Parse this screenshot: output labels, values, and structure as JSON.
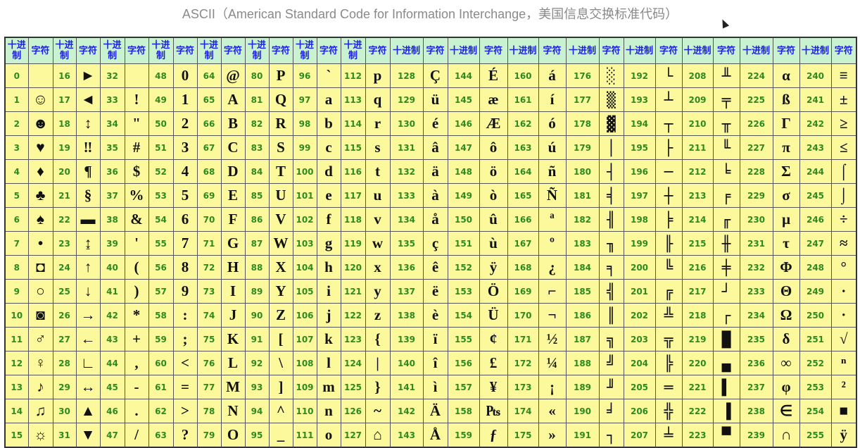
{
  "title": "ASCII（American Standard Code for Information Interchange，美国信息交换标准代码）",
  "header": {
    "decimal": "十进制",
    "decimal_wrapped": "十进 制",
    "char": "字符"
  },
  "colors": {
    "header_bg": "#c8f2d0",
    "header_text": "#1b22e0",
    "cell_bg": "#fbf99c",
    "decimal_text": "#2d8a1f"
  },
  "columns": [
    {
      "decimals": [
        "0",
        "1",
        "2",
        "3",
        "4",
        "5",
        "6",
        "7",
        "8",
        "9",
        "10",
        "11",
        "12",
        "13",
        "14",
        "15"
      ],
      "chars": [
        "",
        "☺",
        "☻",
        "♥",
        "♦",
        "♣",
        "♠",
        "•",
        "◘",
        "○",
        "◙",
        "♂",
        "♀",
        "♪",
        "♫",
        "☼"
      ]
    },
    {
      "decimals": [
        "16",
        "17",
        "18",
        "19",
        "20",
        "21",
        "22",
        "23",
        "24",
        "25",
        "26",
        "27",
        "28",
        "29",
        "30",
        "31"
      ],
      "chars": [
        "►",
        "◄",
        "↕",
        "‼",
        "¶",
        "§",
        "▬",
        "↨",
        "↑",
        "↓",
        "→",
        "←",
        "∟",
        "↔",
        "▲",
        "▼"
      ]
    },
    {
      "decimals": [
        "32",
        "33",
        "34",
        "35",
        "36",
        "37",
        "38",
        "39",
        "40",
        "41",
        "42",
        "43",
        "44",
        "45",
        "46",
        "47"
      ],
      "chars": [
        "",
        "!",
        "\"",
        "#",
        "$",
        "%",
        "&",
        "'",
        "(",
        ")",
        "*",
        "+",
        ",",
        "-",
        ".",
        "/"
      ]
    },
    {
      "decimals": [
        "48",
        "49",
        "50",
        "51",
        "52",
        "53",
        "54",
        "55",
        "56",
        "57",
        "58",
        "59",
        "60",
        "61",
        "62",
        "63"
      ],
      "chars": [
        "0",
        "1",
        "2",
        "3",
        "4",
        "5",
        "6",
        "7",
        "8",
        "9",
        ":",
        ";",
        "<",
        "=",
        ">",
        "?"
      ]
    },
    {
      "decimals": [
        "64",
        "65",
        "66",
        "67",
        "68",
        "69",
        "70",
        "71",
        "72",
        "73",
        "74",
        "75",
        "76",
        "77",
        "78",
        "79"
      ],
      "chars": [
        "@",
        "A",
        "B",
        "C",
        "D",
        "E",
        "F",
        "G",
        "H",
        "I",
        "J",
        "K",
        "L",
        "M",
        "N",
        "O"
      ]
    },
    {
      "decimals": [
        "80",
        "81",
        "82",
        "83",
        "84",
        "85",
        "86",
        "87",
        "88",
        "89",
        "90",
        "91",
        "92",
        "93",
        "94",
        "95"
      ],
      "chars": [
        "P",
        "Q",
        "R",
        "S",
        "T",
        "U",
        "V",
        "W",
        "X",
        "Y",
        "Z",
        "[",
        "\\",
        "]",
        "^",
        "_"
      ]
    },
    {
      "decimals": [
        "96",
        "97",
        "98",
        "99",
        "100",
        "101",
        "102",
        "103",
        "104",
        "105",
        "106",
        "107",
        "108",
        "109",
        "110",
        "111"
      ],
      "chars": [
        "`",
        "a",
        "b",
        "c",
        "d",
        "e",
        "f",
        "g",
        "h",
        "i",
        "j",
        "k",
        "l",
        "m",
        "n",
        "o"
      ]
    },
    {
      "decimals": [
        "112",
        "113",
        "114",
        "115",
        "116",
        "117",
        "118",
        "119",
        "120",
        "121",
        "122",
        "123",
        "124",
        "125",
        "126",
        "127"
      ],
      "chars": [
        "p",
        "q",
        "r",
        "s",
        "t",
        "u",
        "v",
        "w",
        "x",
        "y",
        "z",
        "{",
        "|",
        "}",
        "~",
        "⌂"
      ]
    },
    {
      "decimals": [
        "128",
        "129",
        "130",
        "131",
        "132",
        "133",
        "134",
        "135",
        "136",
        "137",
        "138",
        "139",
        "140",
        "141",
        "142",
        "143"
      ],
      "chars": [
        "Ç",
        "ü",
        "é",
        "â",
        "ä",
        "à",
        "å",
        "ç",
        "ê",
        "ë",
        "è",
        "ï",
        "î",
        "ì",
        "Ä",
        "Å"
      ]
    },
    {
      "decimals": [
        "144",
        "145",
        "146",
        "147",
        "148",
        "149",
        "150",
        "151",
        "152",
        "153",
        "154",
        "155",
        "156",
        "157",
        "158",
        "159"
      ],
      "chars": [
        "É",
        "æ",
        "Æ",
        "ô",
        "ö",
        "ò",
        "û",
        "ù",
        "ÿ",
        "Ö",
        "Ü",
        "¢",
        "£",
        "¥",
        "₧",
        "ƒ"
      ]
    },
    {
      "decimals": [
        "160",
        "161",
        "162",
        "163",
        "164",
        "165",
        "166",
        "167",
        "168",
        "169",
        "170",
        "171",
        "172",
        "173",
        "174",
        "175"
      ],
      "chars": [
        "á",
        "í",
        "ó",
        "ú",
        "ñ",
        "Ñ",
        "ª",
        "º",
        "¿",
        "⌐",
        "¬",
        "½",
        "¼",
        "¡",
        "«",
        "»"
      ]
    },
    {
      "decimals": [
        "176",
        "177",
        "178",
        "179",
        "180",
        "181",
        "182",
        "183",
        "184",
        "185",
        "186",
        "187",
        "188",
        "189",
        "190",
        "191"
      ],
      "chars": [
        "░",
        "▒",
        "▓",
        "│",
        "┤",
        "╡",
        "╢",
        "╖",
        "╕",
        "╣",
        "║",
        "╗",
        "╝",
        "╜",
        "╛",
        "┐"
      ]
    },
    {
      "decimals": [
        "192",
        "193",
        "194",
        "195",
        "196",
        "197",
        "198",
        "199",
        "200",
        "201",
        "202",
        "203",
        "204",
        "205",
        "206",
        "207"
      ],
      "chars": [
        "└",
        "┴",
        "┬",
        "├",
        "─",
        "┼",
        "╞",
        "╟",
        "╚",
        "╔",
        "╩",
        "╦",
        "╠",
        "═",
        "╬",
        "╧"
      ]
    },
    {
      "decimals": [
        "208",
        "209",
        "210",
        "211",
        "212",
        "213",
        "214",
        "215",
        "216",
        "217",
        "218",
        "219",
        "220",
        "221",
        "222",
        "223"
      ],
      "chars": [
        "╨",
        "╤",
        "╥",
        "╙",
        "╘",
        "╒",
        "╓",
        "╫",
        "╪",
        "┘",
        "┌",
        "█",
        "▄",
        "▌",
        "▐",
        "▀"
      ]
    },
    {
      "decimals": [
        "224",
        "225",
        "226",
        "227",
        "228",
        "229",
        "230",
        "231",
        "232",
        "233",
        "234",
        "235",
        "236",
        "237",
        "238",
        "239"
      ],
      "chars": [
        "α",
        "ß",
        "Γ",
        "π",
        "Σ",
        "σ",
        "µ",
        "τ",
        "Φ",
        "Θ",
        "Ω",
        "δ",
        "∞",
        "φ",
        "∈",
        "∩"
      ]
    },
    {
      "decimals": [
        "240",
        "241",
        "242",
        "243",
        "244",
        "245",
        "246",
        "247",
        "248",
        "249",
        "250",
        "251",
        "252",
        "253",
        "254",
        "255"
      ],
      "chars": [
        "≡",
        "±",
        "≥",
        "≤",
        "⌠",
        "⌡",
        "÷",
        "≈",
        "°",
        "∙",
        "·",
        "√",
        "ⁿ",
        "²",
        "■",
        "ÿ"
      ]
    }
  ]
}
